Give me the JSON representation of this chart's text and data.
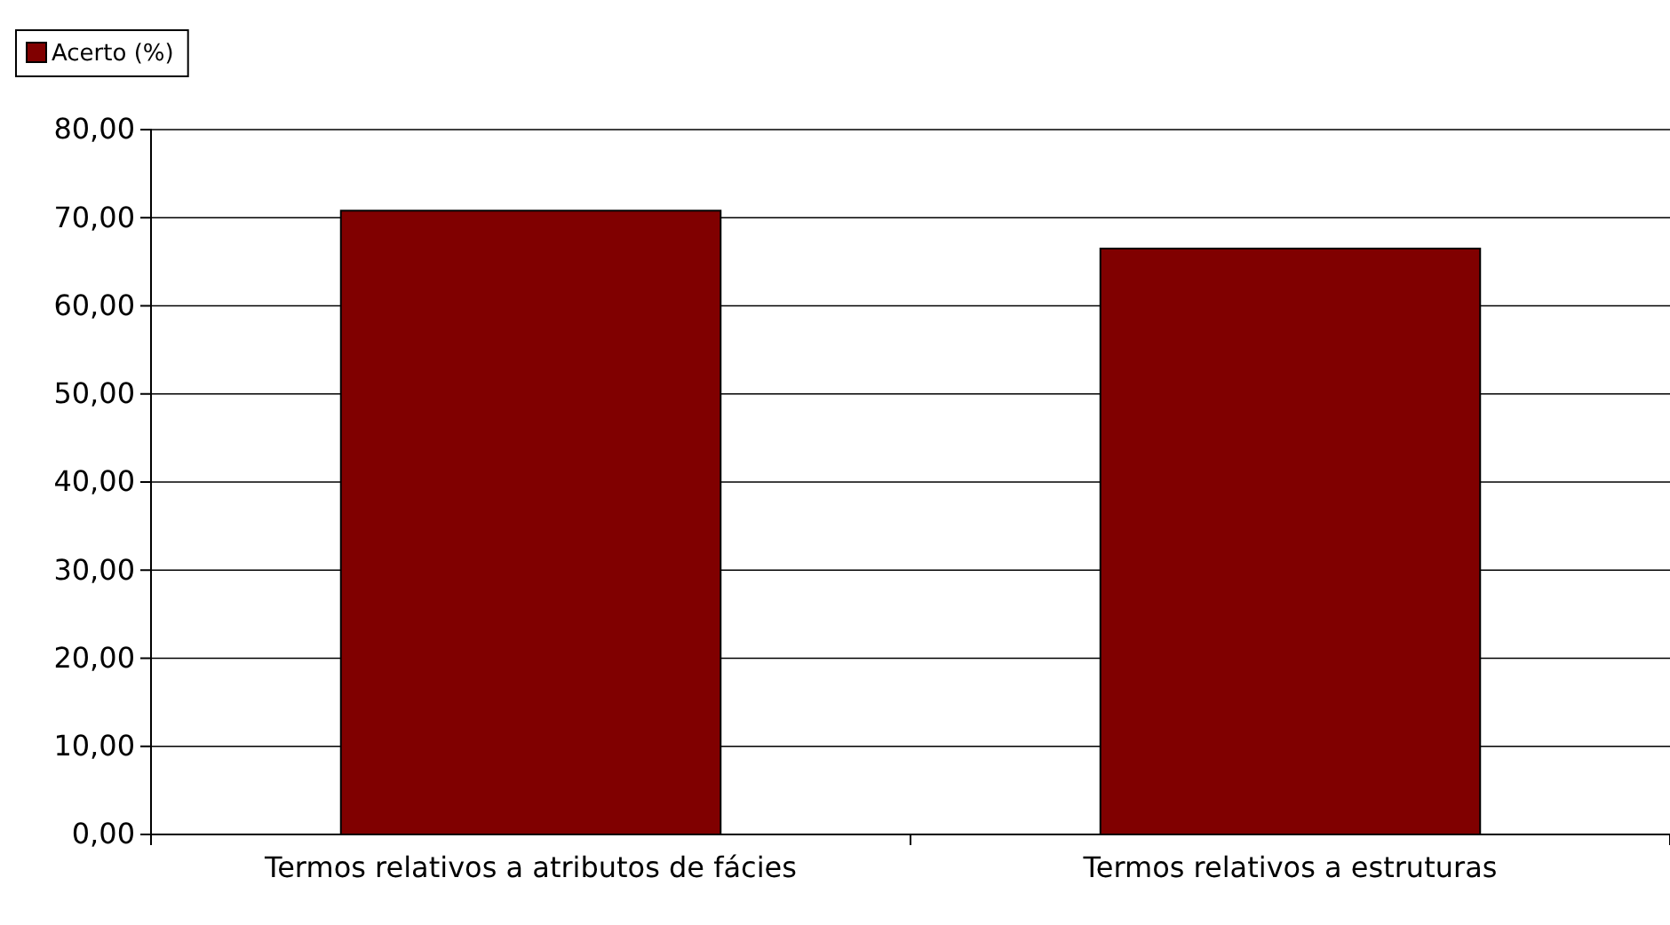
{
  "chart_data": {
    "type": "bar",
    "categories": [
      "Termos relativos a atributos de fácies",
      "Termos relativos a estruturas"
    ],
    "series": [
      {
        "name": "Acerto (%)",
        "color": "#800000",
        "values": [
          70.8,
          66.5
        ]
      }
    ],
    "ylim": [
      0,
      80
    ],
    "yticks": [
      {
        "value": 0,
        "label": "0,00"
      },
      {
        "value": 10,
        "label": "10,00"
      },
      {
        "value": 20,
        "label": "20,00"
      },
      {
        "value": 30,
        "label": "30,00"
      },
      {
        "value": 40,
        "label": "40,00"
      },
      {
        "value": 50,
        "label": "50,00"
      },
      {
        "value": 60,
        "label": "60,00"
      },
      {
        "value": 70,
        "label": "70,00"
      },
      {
        "value": 80,
        "label": "80,00"
      }
    ],
    "grid": "y",
    "legend": "top left"
  }
}
